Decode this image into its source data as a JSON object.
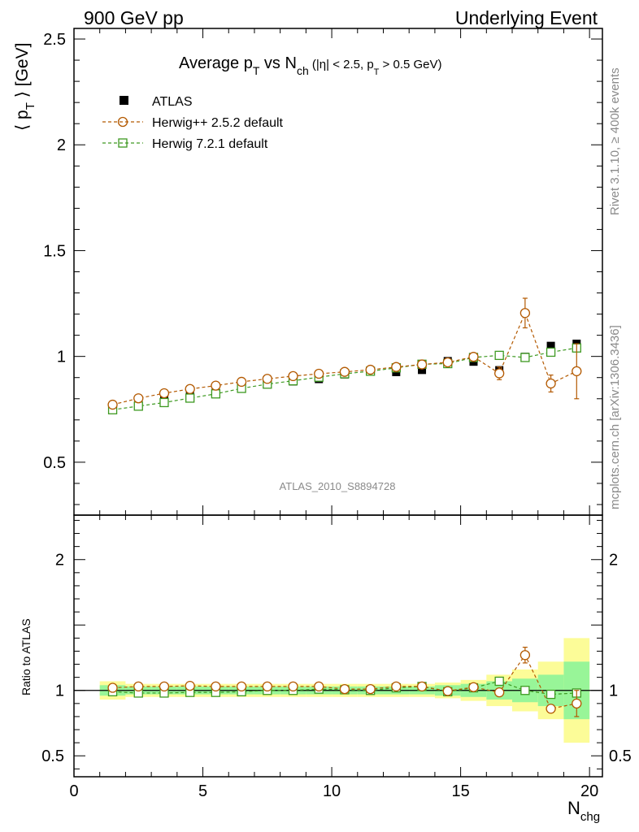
{
  "header": {
    "left": "900 GeV pp",
    "right": "Underlying Event"
  },
  "plot_title": {
    "main_a": "Average p",
    "main_a_sub": "T",
    "main_b": " vs N",
    "main_b_sub": "ch",
    "cut_a": " (|η| < 2.5, p",
    "cut_sub": "T",
    "cut_b": " > 0.5 GeV)"
  },
  "side_text": {
    "rivet": "Rivet 3.1.10, ≥ 400k events",
    "mcplots": "mcplots.cern.ch [arXiv:1306.3436]"
  },
  "watermark": "ATLAS_2010_S8894728",
  "axes": {
    "ylabel_main_a": "⟨ p",
    "ylabel_main_sub": "T",
    "ylabel_main_b": " ⟩ [GeV]",
    "ylabel_ratio": "Ratio to ATLAS",
    "xlabel": "N",
    "xlabel_sub": "chg"
  },
  "legend": {
    "atlas": "ATLAS",
    "herwig_old": "Herwig++ 2.5.2 default",
    "herwig_new": "Herwig 7.2.1 default"
  },
  "colors": {
    "herwig_old": "#b35900",
    "herwig_new": "#3d9920",
    "band_inner": "#98f598",
    "band_outer": "#fcfc98"
  },
  "chart_data": [
    {
      "type": "scatter",
      "panel": "main",
      "xlim": [
        0,
        20.5
      ],
      "ylim": [
        0.25,
        2.55
      ],
      "yticks": [
        0.5,
        1,
        1.5,
        2,
        2.5
      ],
      "x": [
        1.5,
        2.5,
        3.5,
        4.5,
        5.5,
        6.5,
        7.5,
        8.5,
        9.5,
        10.5,
        11.5,
        12.5,
        13.5,
        14.5,
        15.5,
        16.5,
        17.5,
        18.5,
        19.5
      ],
      "series": [
        {
          "name": "ATLAS",
          "values": [
            0.757,
            0.782,
            0.8,
            0.818,
            0.84,
            0.856,
            0.868,
            0.882,
            0.893,
            0.915,
            0.929,
            0.926,
            0.936,
            0.978,
            0.975,
            0.935,
            0.998,
            1.05,
            1.06
          ]
        },
        {
          "name": "Herwig++ 2.5.2 default",
          "values": [
            0.772,
            0.802,
            0.826,
            0.846,
            0.862,
            0.88,
            0.894,
            0.907,
            0.918,
            0.927,
            0.937,
            0.95,
            0.962,
            0.972,
            0.998,
            0.92,
            1.205,
            0.872,
            0.93
          ],
          "errors": [
            0,
            0,
            0,
            0,
            0,
            0,
            0,
            0,
            0,
            0,
            0,
            0,
            0,
            0,
            0,
            0.03,
            0.07,
            0.04,
            0.13
          ]
        },
        {
          "name": "Herwig 7.2.1 default",
          "values": [
            0.748,
            0.765,
            0.782,
            0.803,
            0.823,
            0.849,
            0.869,
            0.885,
            0.902,
            0.918,
            0.93,
            0.946,
            0.963,
            0.966,
            0.995,
            1.005,
            0.995,
            1.02,
            1.04
          ]
        }
      ]
    },
    {
      "type": "scatter",
      "panel": "ratio",
      "xlim": [
        0,
        20.5
      ],
      "ylim": [
        0.34,
        2.34
      ],
      "yticks": [
        0.5,
        1,
        2
      ],
      "xticks": [
        0,
        5,
        10,
        15,
        20
      ],
      "x": [
        1.5,
        2.5,
        3.5,
        4.5,
        5.5,
        6.5,
        7.5,
        8.5,
        9.5,
        10.5,
        11.5,
        12.5,
        13.5,
        14.5,
        15.5,
        16.5,
        17.5,
        18.5,
        19.5
      ],
      "band_inner": [
        0.04,
        0.03,
        0.03,
        0.03,
        0.03,
        0.03,
        0.03,
        0.03,
        0.03,
        0.03,
        0.03,
        0.03,
        0.03,
        0.04,
        0.05,
        0.07,
        0.09,
        0.12,
        0.22
      ],
      "band_outer": [
        0.07,
        0.05,
        0.05,
        0.05,
        0.05,
        0.05,
        0.05,
        0.05,
        0.05,
        0.05,
        0.05,
        0.05,
        0.05,
        0.06,
        0.08,
        0.12,
        0.16,
        0.22,
        0.4
      ],
      "series": [
        {
          "name": "Herwig++ 2.5.2 default",
          "values": [
            1.02,
            1.03,
            1.03,
            1.035,
            1.03,
            1.03,
            1.03,
            1.03,
            1.03,
            1.01,
            1.01,
            1.03,
            1.03,
            0.995,
            1.025,
            0.985,
            1.27,
            0.86,
            0.9
          ],
          "errors": [
            0,
            0,
            0,
            0,
            0,
            0,
            0,
            0,
            0,
            0,
            0,
            0,
            0,
            0,
            0,
            0.02,
            0.06,
            0.03,
            0.1
          ]
        },
        {
          "name": "Herwig 7.2.1 default",
          "values": [
            0.99,
            0.98,
            0.98,
            0.985,
            0.985,
            0.99,
            1.0,
            1.0,
            1.01,
            1.005,
            1.0,
            1.02,
            1.03,
            0.99,
            1.02,
            1.07,
            1.0,
            0.97,
            0.98
          ]
        }
      ]
    }
  ]
}
